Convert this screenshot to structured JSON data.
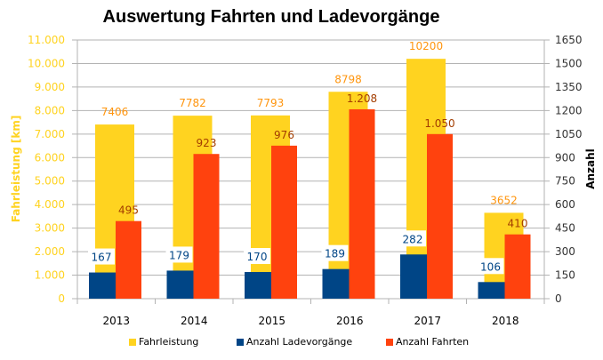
{
  "chart_data": {
    "type": "bar",
    "title": "Auswertung Fahrten und Ladevorgänge",
    "categories": [
      "2013",
      "2014",
      "2015",
      "2016",
      "2017",
      "2018"
    ],
    "xlabel": "",
    "ylabel": "Fahrleistung [km]",
    "y2label": "Anzahl",
    "ylim": [
      0,
      11000
    ],
    "y2lim": [
      0,
      1650
    ],
    "yticks": [
      "0",
      "1.000",
      "2.000",
      "3.000",
      "4.000",
      "5.000",
      "6.000",
      "7.000",
      "8.000",
      "9.000",
      "10.000",
      "11.000"
    ],
    "y2ticks": [
      "0",
      "150",
      "300",
      "450",
      "600",
      "750",
      "900",
      "1050",
      "1200",
      "1350",
      "1500",
      "1650"
    ],
    "grid": true,
    "legend_position": "bottom",
    "series": [
      {
        "name": "Fahrleistung",
        "axis": "left",
        "color": "#ffd320",
        "label_color": "#ff950e",
        "values": [
          7406,
          7782,
          7793,
          8798,
          10200,
          3652
        ],
        "labels": [
          "7406",
          "7782",
          "7793",
          "8798",
          "10200",
          "3652"
        ]
      },
      {
        "name": "Anzahl Ladevorgänge",
        "axis": "right",
        "color": "#004586",
        "label_color": "#004586",
        "values": [
          167,
          179,
          170,
          189,
          282,
          106
        ],
        "labels": [
          "167",
          "179",
          "170",
          "189",
          "282",
          "106"
        ]
      },
      {
        "name": "Anzahl Fahrten",
        "axis": "right",
        "color": "#ff420e",
        "label_color": "#a33d00",
        "values": [
          495,
          923,
          976,
          1208,
          1050,
          410
        ],
        "labels": [
          "495",
          "923",
          "976",
          "1.208",
          "1.050",
          "410"
        ]
      }
    ]
  }
}
